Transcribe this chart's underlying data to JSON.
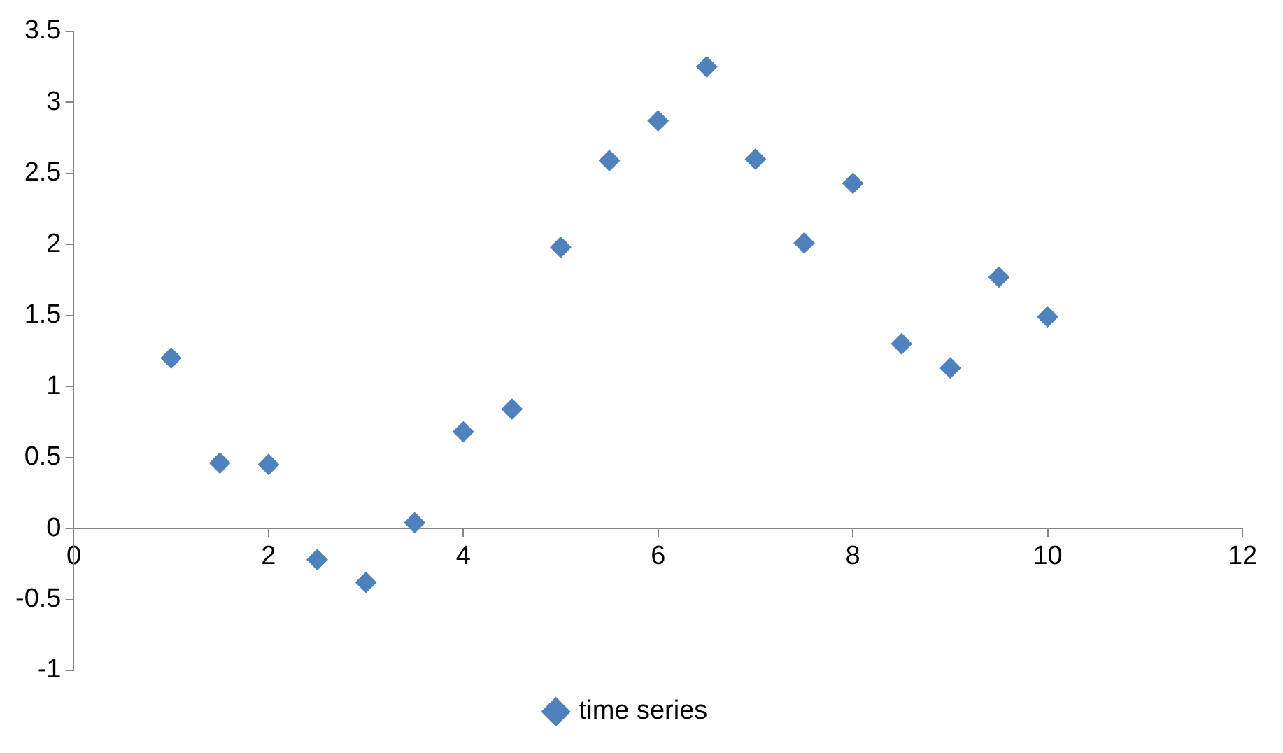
{
  "chart_data": {
    "type": "scatter",
    "x": [
      1,
      1.5,
      2,
      2.5,
      3,
      3.5,
      4,
      4.5,
      5,
      5.5,
      6,
      6.5,
      7,
      7.5,
      8,
      8.5,
      9,
      9.5,
      10
    ],
    "series": [
      {
        "name": "time series",
        "color": "#4f81bd",
        "values": [
          1.2,
          0.46,
          0.45,
          -0.22,
          -0.38,
          0.04,
          0.68,
          0.84,
          1.98,
          2.59,
          2.87,
          3.25,
          2.6,
          2.01,
          2.43,
          1.3,
          1.13,
          1.77,
          1.49
        ]
      }
    ],
    "xlim": [
      0,
      12
    ],
    "xticks": [
      0,
      2,
      4,
      6,
      8,
      10,
      12
    ],
    "ylim": [
      -1,
      3.5
    ],
    "yticks": [
      -1,
      -0.5,
      0,
      0.5,
      1,
      1.5,
      2,
      2.5,
      3,
      3.5
    ],
    "grid": false,
    "legend": "bottom",
    "marker": "diamond"
  }
}
